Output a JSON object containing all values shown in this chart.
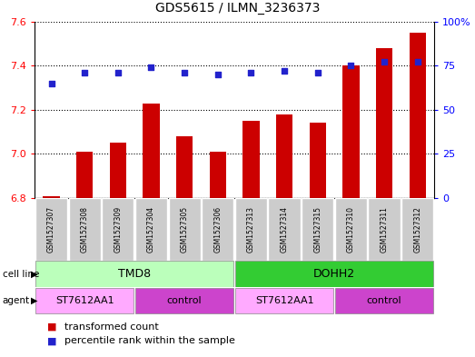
{
  "title": "GDS5615 / ILMN_3236373",
  "samples": [
    "GSM1527307",
    "GSM1527308",
    "GSM1527309",
    "GSM1527304",
    "GSM1527305",
    "GSM1527306",
    "GSM1527313",
    "GSM1527314",
    "GSM1527315",
    "GSM1527310",
    "GSM1527311",
    "GSM1527312"
  ],
  "bar_values": [
    6.81,
    7.01,
    7.05,
    7.23,
    7.08,
    7.01,
    7.15,
    7.18,
    7.14,
    7.4,
    7.48,
    7.55
  ],
  "dot_values": [
    65,
    71,
    71,
    74,
    71,
    70,
    71,
    72,
    71,
    75,
    77,
    77
  ],
  "ylim_left": [
    6.8,
    7.6
  ],
  "ylim_right": [
    0,
    100
  ],
  "yticks_left": [
    6.8,
    7.0,
    7.2,
    7.4,
    7.6
  ],
  "yticks_right": [
    0,
    25,
    50,
    75,
    100
  ],
  "ytick_labels_right": [
    "0",
    "25",
    "50",
    "75",
    "100%"
  ],
  "bar_color": "#cc0000",
  "dot_color": "#2222cc",
  "bar_bottom": 6.8,
  "cell_line_color_tmd8": "#bbffbb",
  "cell_line_color_dohh2": "#33cc33",
  "agent_color_st": "#ffaaff",
  "agent_color_ctrl": "#cc44cc",
  "background_color": "#ffffff"
}
